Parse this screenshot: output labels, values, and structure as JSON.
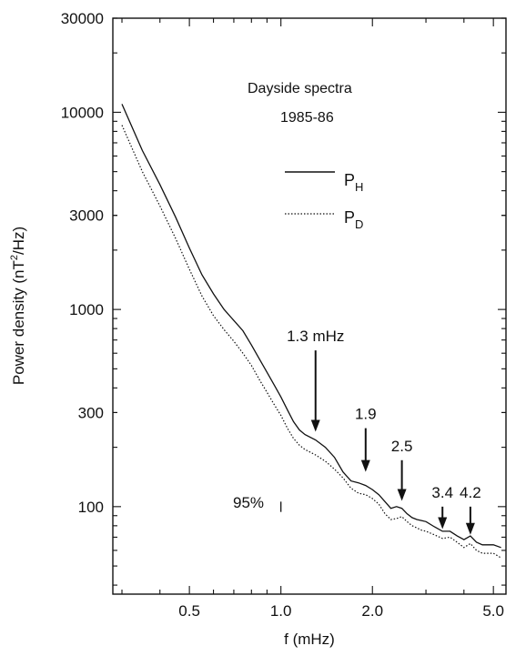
{
  "chart_data": {
    "type": "line",
    "title": "Dayside spectra",
    "subtitle": "1985-86",
    "xlabel": "f (mHz)",
    "ylabel_main": "Power density (nT",
    "ylabel_sup": "2",
    "ylabel_tail": "/Hz)",
    "xscale": "log",
    "yscale": "log",
    "xlim": [
      0.28,
      5.5
    ],
    "ylim": [
      36,
      30000
    ],
    "x_ticks": [
      {
        "value": 0.5,
        "label": "0.5"
      },
      {
        "value": 1.0,
        "label": "1.0"
      },
      {
        "value": 2.0,
        "label": "2.0"
      },
      {
        "value": 5.0,
        "label": "5.0"
      }
    ],
    "y_ticks": [
      {
        "value": 100,
        "label": "100"
      },
      {
        "value": 300,
        "label": "300"
      },
      {
        "value": 1000,
        "label": "1000"
      },
      {
        "value": 3000,
        "label": "3000"
      },
      {
        "value": 10000,
        "label": "10000"
      },
      {
        "value": 30000,
        "label": "30000"
      }
    ],
    "grid": false,
    "legend_position": "upper-center",
    "series": [
      {
        "name": "P",
        "name_sub": "H",
        "style": "solid",
        "x": [
          0.3,
          0.35,
          0.4,
          0.45,
          0.5,
          0.55,
          0.6,
          0.65,
          0.7,
          0.75,
          0.8,
          0.85,
          0.9,
          0.95,
          1.0,
          1.05,
          1.1,
          1.15,
          1.2,
          1.3,
          1.4,
          1.5,
          1.6,
          1.7,
          1.8,
          1.9,
          2.0,
          2.1,
          2.2,
          2.3,
          2.4,
          2.5,
          2.6,
          2.7,
          2.8,
          2.9,
          3.0,
          3.2,
          3.4,
          3.6,
          3.8,
          4.0,
          4.2,
          4.4,
          4.6,
          4.8,
          5.0,
          5.3
        ],
        "y": [
          11000,
          6400,
          4300,
          2950,
          2050,
          1500,
          1200,
          1000,
          880,
          780,
          660,
          560,
          480,
          415,
          360,
          310,
          270,
          245,
          232,
          218,
          200,
          178,
          150,
          135,
          132,
          128,
          122,
          115,
          106,
          98,
          100,
          98,
          92,
          88,
          86,
          85,
          84,
          79,
          75,
          75,
          71,
          68,
          71,
          66,
          64,
          64,
          64,
          62
        ]
      },
      {
        "name": "P",
        "name_sub": "D",
        "style": "dotted",
        "x": [
          0.3,
          0.35,
          0.4,
          0.45,
          0.5,
          0.55,
          0.6,
          0.65,
          0.7,
          0.75,
          0.8,
          0.85,
          0.9,
          0.95,
          1.0,
          1.05,
          1.1,
          1.15,
          1.2,
          1.3,
          1.4,
          1.5,
          1.6,
          1.7,
          1.8,
          1.9,
          2.0,
          2.1,
          2.2,
          2.3,
          2.4,
          2.5,
          2.6,
          2.7,
          2.8,
          2.9,
          3.0,
          3.2,
          3.4,
          3.6,
          3.8,
          4.0,
          4.2,
          4.4,
          4.6,
          4.8,
          5.0,
          5.3
        ],
        "y": [
          8600,
          5000,
          3350,
          2300,
          1600,
          1170,
          930,
          790,
          690,
          600,
          520,
          440,
          380,
          330,
          290,
          250,
          222,
          205,
          195,
          183,
          170,
          155,
          140,
          124,
          117,
          115,
          110,
          103,
          92,
          86,
          87,
          89,
          84,
          80,
          78,
          76,
          75,
          72,
          69,
          70,
          66,
          62,
          65,
          60,
          58,
          58,
          58,
          55
        ]
      }
    ],
    "annotations": [
      {
        "text": "1.3 mHz",
        "x": 1.3,
        "arrow_top": 620,
        "arrow_bottom": 240
      },
      {
        "text": "1.9",
        "x": 1.9,
        "arrow_top": 250,
        "arrow_bottom": 150
      },
      {
        "text": "2.5",
        "x": 2.5,
        "arrow_top": 172,
        "arrow_bottom": 107
      },
      {
        "text": "3.4",
        "x": 3.4,
        "arrow_top": 100,
        "arrow_bottom": 77
      },
      {
        "text": "4.2",
        "x": 4.2,
        "arrow_top": 100,
        "arrow_bottom": 72
      }
    ],
    "confidence_label": "95%",
    "confidence_bar": {
      "x": 1.0,
      "low": 94,
      "high": 106
    }
  }
}
